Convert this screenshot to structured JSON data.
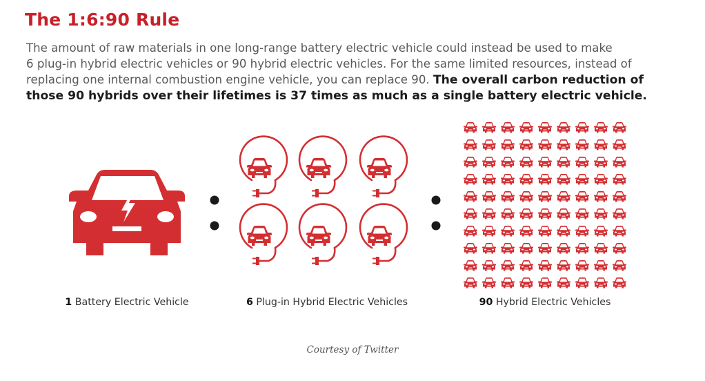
{
  "title": "The 1:6:90 Rule",
  "paragraph": {
    "line1": "The amount of raw materials in one long-range battery electric vehicle could instead be used to make",
    "line2": "6 plug-in hybrid electric vehicles or 90 hybrid electric vehicles. For the same limited resources, instead of",
    "line3": "replacing one internal combustion engine vehicle, you can replace 90.",
    "emphasis_line3": "The overall carbon reduction of",
    "emphasis_line4": "those 90 hybrids over their lifetimes is 37 times as much as a single battery electric vehicle."
  },
  "groups": [
    {
      "count": "1",
      "label": "Battery Electric Vehicle",
      "icon": "electric-car-icon"
    },
    {
      "count": "6",
      "label": "Plug-in Hybrid Electric Vehicles",
      "icon": "plug-in-car-icon"
    },
    {
      "count": "90",
      "label": "Hybrid Electric Vehicles",
      "icon": "car-icon"
    }
  ],
  "credit": "Courtesy of Twitter",
  "colors": {
    "accent": "#d32f32",
    "title": "#c8202a",
    "dots": "#1a1a1a"
  }
}
